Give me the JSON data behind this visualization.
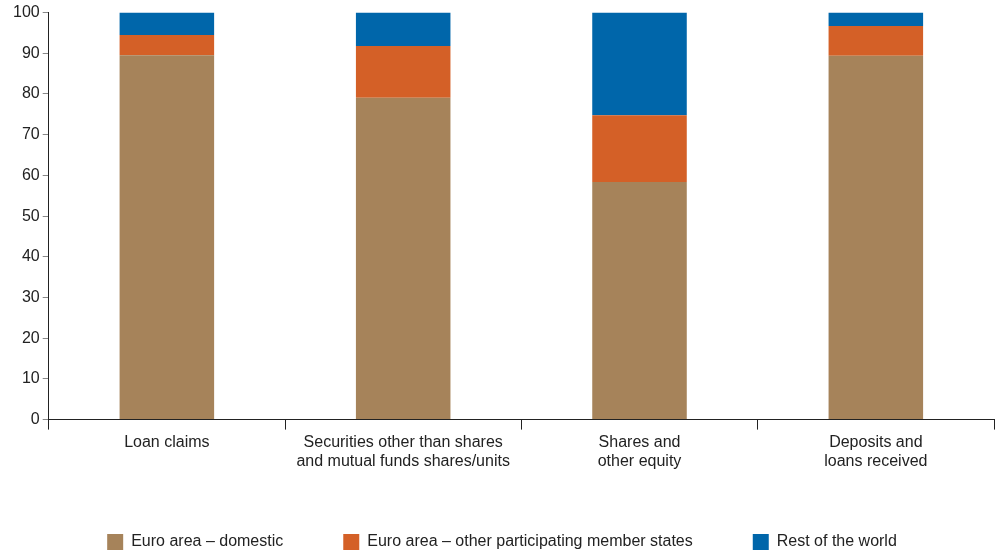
{
  "chart_data": {
    "type": "bar",
    "stacked": true,
    "categories": [
      "Loan claims",
      "Securities other than shares\nand mutual funds shares/units",
      "Shares and\nother equity",
      "Deposits and\nloans received"
    ],
    "series": [
      {
        "name": "Euro area – domestic",
        "color": "#a6835a",
        "values": [
          89.5,
          79.1,
          58.4,
          89.4
        ]
      },
      {
        "name": "Euro area – other participating member states",
        "color": "#d46027",
        "values": [
          5.0,
          12.7,
          16.4,
          7.3
        ]
      },
      {
        "name": "Rest of the world",
        "color": "#0066aa",
        "values": [
          5.5,
          8.2,
          25.2,
          3.3
        ]
      }
    ],
    "ylim": [
      0,
      100
    ],
    "yticks": [
      0,
      10,
      20,
      30,
      40,
      50,
      60,
      70,
      80,
      90,
      100
    ],
    "grid": false,
    "legend": "bottom"
  }
}
